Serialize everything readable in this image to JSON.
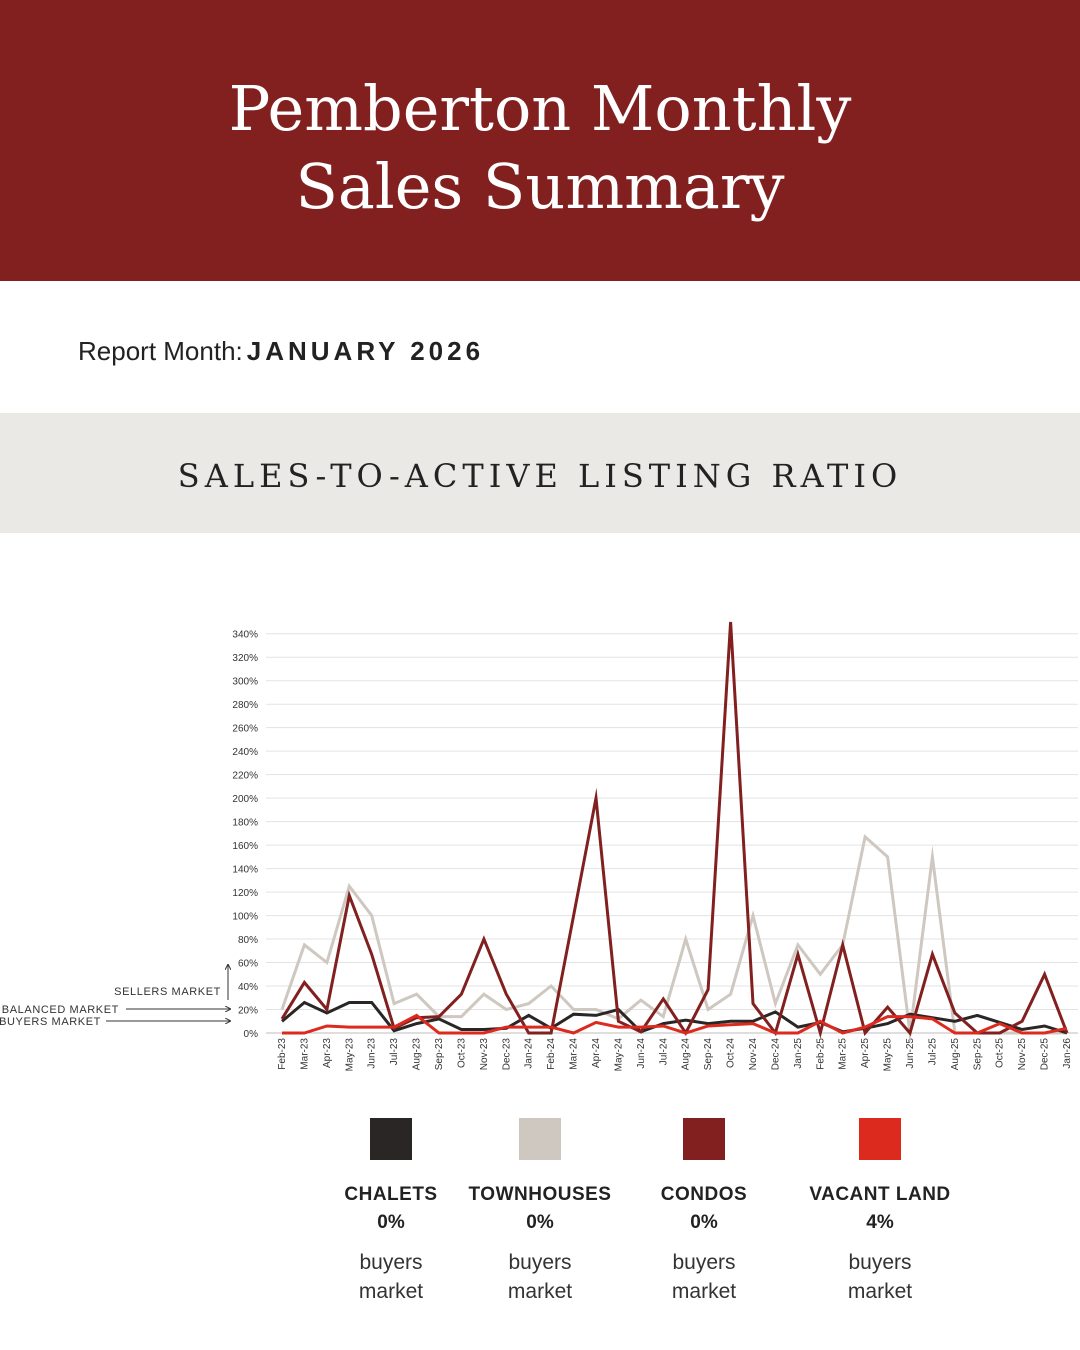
{
  "header": {
    "title_line1": "Pemberton Monthly",
    "title_line2": "Sales Summary"
  },
  "report": {
    "label": "Report Month:",
    "value": "JANUARY 2026"
  },
  "section": {
    "title": "SALES-TO-ACTIVE LISTING RATIO"
  },
  "annotations": {
    "sellers": "SELLERS MARKET",
    "balanced": "BALANCED MARKET",
    "buyers": "BUYERS MARKET"
  },
  "chart_data": {
    "type": "line",
    "title": "SALES-TO-ACTIVE LISTING RATIO",
    "xlabel": "",
    "ylabel": "",
    "ylim": [
      0,
      350
    ],
    "ytick_values": [
      0,
      20,
      40,
      60,
      80,
      100,
      120,
      140,
      160,
      180,
      200,
      220,
      240,
      260,
      280,
      300,
      320,
      340
    ],
    "ytick_labels": [
      "0%",
      "20%",
      "40%",
      "60%",
      "80%",
      "100%",
      "120%",
      "140%",
      "160%",
      "180%",
      "200%",
      "220%",
      "240%",
      "260%",
      "280%",
      "300%",
      "320%",
      "340%"
    ],
    "grid": true,
    "categories": [
      "Feb-23",
      "Mar-23",
      "Apr-23",
      "May-23",
      "Jun-23",
      "Jul-23",
      "Aug-23",
      "Sep-23",
      "Oct-23",
      "Nov-23",
      "Dec-23",
      "Jan-24",
      "Feb-24",
      "Mar-24",
      "Apr-24",
      "May-24",
      "Jun-24",
      "Jul-24",
      "Aug-24",
      "Sep-24",
      "Oct-24",
      "Nov-24",
      "Dec-24",
      "Jan-25",
      "Feb-25",
      "Mar-25",
      "Apr-25",
      "May-25",
      "Jun-25",
      "Jul-25",
      "Aug-25",
      "Sep-25",
      "Oct-25",
      "Nov-25",
      "Dec-25",
      "Jan-26"
    ],
    "series": [
      {
        "name": "TOWNHOUSES",
        "color": "#cfc8c1",
        "values": [
          20,
          75,
          60,
          125,
          100,
          25,
          33,
          14,
          14,
          33,
          20,
          25,
          40,
          20,
          20,
          12,
          28,
          14,
          80,
          20,
          33,
          100,
          25,
          75,
          50,
          75,
          167,
          150,
          0,
          150,
          0,
          0,
          0,
          0,
          0,
          0
        ]
      },
      {
        "name": "CHALETS",
        "color": "#2b2626",
        "values": [
          10,
          26,
          17,
          26,
          26,
          2,
          8,
          12,
          3,
          3,
          4,
          15,
          4,
          16,
          15,
          20,
          1,
          8,
          11,
          8,
          10,
          10,
          18,
          5,
          9,
          1,
          4,
          8,
          16,
          13,
          10,
          15,
          9,
          3,
          6,
          0
        ]
      },
      {
        "name": "CONDOS",
        "color": "#822020",
        "values": [
          12,
          43,
          20,
          117,
          67,
          4,
          13,
          14,
          33,
          80,
          33,
          0,
          0,
          100,
          200,
          10,
          1,
          29,
          0,
          37,
          350,
          25,
          0,
          67,
          0,
          75,
          0,
          22,
          0,
          67,
          17,
          0,
          0,
          10,
          50,
          0
        ]
      },
      {
        "name": "VACANT LAND",
        "color": "#dc2a1f",
        "values": [
          0,
          0,
          6,
          5,
          5,
          5,
          15,
          0,
          0,
          0,
          5,
          5,
          5,
          0,
          9,
          5,
          5,
          6,
          0,
          6,
          7,
          8,
          0,
          0,
          10,
          0,
          5,
          14,
          14,
          12,
          0,
          0,
          8,
          0,
          0,
          4
        ]
      }
    ]
  },
  "legend": [
    {
      "name": "CHALETS",
      "percent": "0%",
      "market_line1": "buyers",
      "market_line2": "market",
      "color": "#2b2626"
    },
    {
      "name": "TOWNHOUSES",
      "percent": "0%",
      "market_line1": "buyers",
      "market_line2": "market",
      "color": "#cfc8c1"
    },
    {
      "name": "CONDOS",
      "percent": "0%",
      "market_line1": "buyers",
      "market_line2": "market",
      "color": "#822020"
    },
    {
      "name": "VACANT LAND",
      "percent": "4%",
      "market_line1": "buyers",
      "market_line2": "market",
      "color": "#dc2a1f"
    }
  ]
}
